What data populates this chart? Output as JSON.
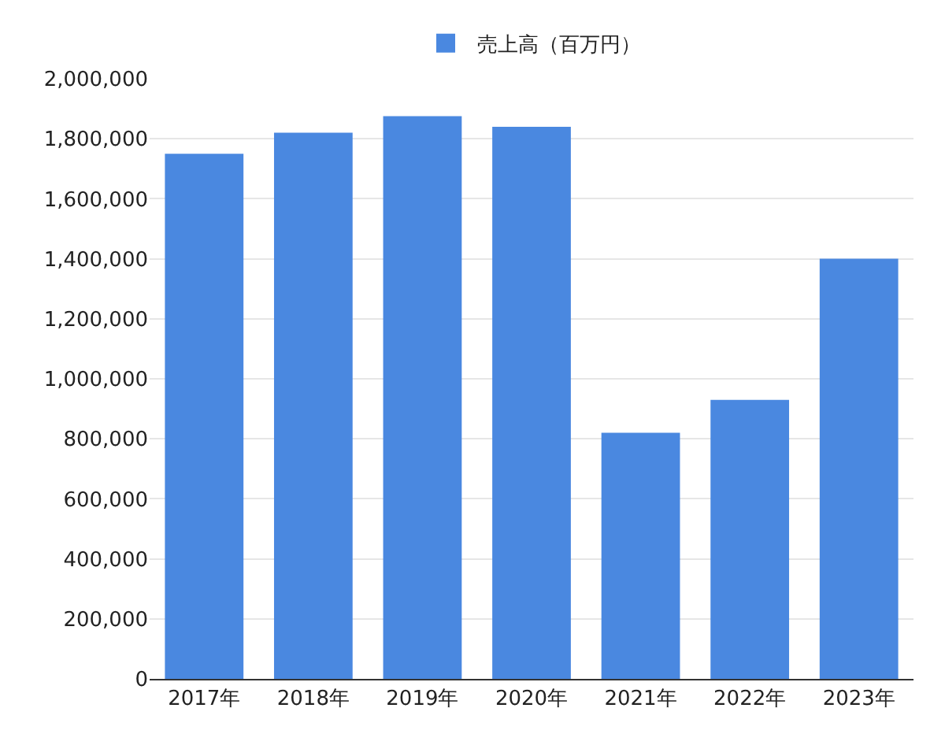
{
  "chart_data": {
    "type": "bar",
    "categories": [
      "2017年",
      "2018年",
      "2019年",
      "2020年",
      "2021年",
      "2022年",
      "2023年"
    ],
    "series": [
      {
        "name": "売上高（百万円）",
        "color": "#4a88e0",
        "values": [
          1750000,
          1820000,
          1875000,
          1840000,
          820000,
          930000,
          1400000
        ]
      }
    ],
    "ylim": [
      0,
      2000000
    ],
    "yticks": [
      {
        "value": 0,
        "label": "0"
      },
      {
        "value": 200000,
        "label": "200,000"
      },
      {
        "value": 400000,
        "label": "400,000"
      },
      {
        "value": 600000,
        "label": "600,000"
      },
      {
        "value": 800000,
        "label": "800,000"
      },
      {
        "value": 1000000,
        "label": "1,000,000"
      },
      {
        "value": 1200000,
        "label": "1,200,000"
      },
      {
        "value": 1400000,
        "label": "1,400,000"
      },
      {
        "value": 1600000,
        "label": "1,600,000"
      },
      {
        "value": 1800000,
        "label": "1,800,000"
      },
      {
        "value": 2000000,
        "label": "2,000,000"
      }
    ],
    "grid": "y",
    "legend": "top"
  }
}
